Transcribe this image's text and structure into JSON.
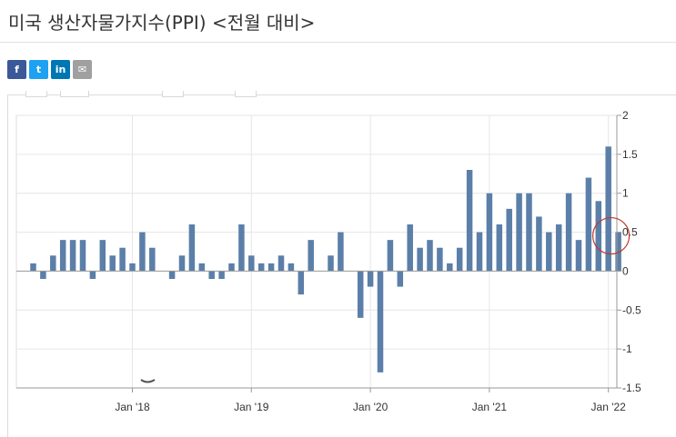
{
  "page": {
    "title": "미국 생산자물가지수(PPI) <전월 대비>"
  },
  "share": {
    "facebook_icon": "f",
    "twitter_icon": "t",
    "linkedin_icon": "in",
    "mail_icon": "✉"
  },
  "colors": {
    "bar": "#5b7fa8",
    "grid": "#e6e6e6",
    "axis": "#999999",
    "highlight_circle": "#c0392b"
  },
  "chart_data": {
    "type": "bar",
    "title": "",
    "xlabel": "",
    "ylabel": "",
    "ylim": [
      -1.5,
      2
    ],
    "y_ticks": [
      "2",
      "1.5",
      "1",
      "0.5",
      "0",
      "-0.5",
      "-1",
      "-1.5"
    ],
    "y_tick_values": [
      2,
      1.5,
      1,
      0.5,
      0,
      -0.5,
      -1,
      -1.5
    ],
    "x_tick_labels": [
      "Jan '18",
      "Jan '19",
      "Jan '20",
      "Jan '21",
      "Jan '22"
    ],
    "x_tick_index": [
      10,
      22,
      34,
      46,
      58
    ],
    "first_month": "Mar 2017",
    "values": [
      0.1,
      -0.1,
      0.2,
      0.4,
      0.4,
      0.4,
      -0.1,
      0.4,
      0.2,
      0.3,
      0.1,
      0.5,
      0.3,
      0.0,
      -0.1,
      0.2,
      0.6,
      0.1,
      -0.1,
      -0.1,
      0.1,
      0.6,
      0.2,
      0.1,
      0.1,
      0.2,
      0.1,
      -0.3,
      0.4,
      0.0,
      0.2,
      0.5,
      0.0,
      -0.6,
      -0.2,
      -1.3,
      0.4,
      -0.2,
      0.6,
      0.3,
      0.4,
      0.3,
      0.1,
      0.3,
      1.3,
      0.5,
      1.0,
      0.6,
      0.8,
      1.0,
      1.0,
      0.7,
      0.5,
      0.6,
      1.0,
      0.4,
      1.2,
      0.9,
      1.6,
      0.5
    ],
    "highlight_index": 59
  }
}
